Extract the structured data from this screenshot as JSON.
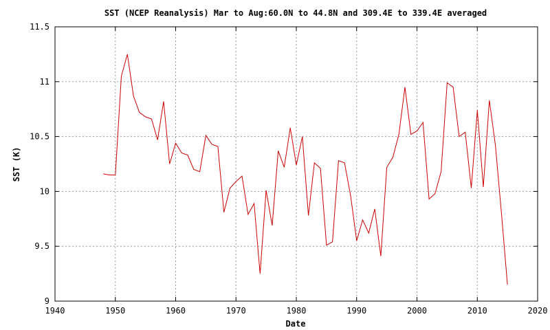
{
  "chart_data": {
    "type": "line",
    "title": "SST (NCEP Reanalysis) Mar to Aug:60.0N to 44.8N and 309.4E to 339.4E averaged",
    "xlabel": "Date",
    "ylabel": "SST (K)",
    "xlim": [
      1940,
      2020
    ],
    "ylim": [
      9,
      11.5
    ],
    "xticks": [
      "1940",
      "1950",
      "1960",
      "1970",
      "1980",
      "1990",
      "2000",
      "2010",
      "2020"
    ],
    "yticks": [
      "9",
      "9.5",
      "10",
      "10.5",
      "11",
      "11.5"
    ],
    "grid": true,
    "line_color": "#cc0000",
    "series": [
      {
        "x": [
          1948,
          1949,
          1950,
          1951,
          1952,
          1953,
          1954,
          1955,
          1956,
          1957,
          1958,
          1959,
          1960,
          1961,
          1962,
          1963,
          1964,
          1965,
          1966,
          1967,
          1968,
          1969,
          1970,
          1971,
          1972,
          1973,
          1974,
          1975,
          1976,
          1977,
          1978,
          1979,
          1980,
          1981,
          1982,
          1983,
          1984,
          1985,
          1986,
          1987,
          1988,
          1989,
          1990,
          1991,
          1992,
          1993,
          1994,
          1995,
          1996,
          1997,
          1998,
          1999,
          2000,
          2001,
          2002,
          2003,
          2004,
          2005,
          2006,
          2007,
          2008,
          2009,
          2010,
          2011,
          2012,
          2013,
          2014,
          2015
        ],
        "values": [
          10.16,
          10.15,
          10.15,
          11.05,
          11.25,
          10.87,
          10.72,
          10.68,
          10.66,
          10.47,
          10.82,
          10.25,
          10.44,
          10.35,
          10.33,
          10.2,
          10.18,
          10.51,
          10.43,
          10.41,
          9.81,
          10.03,
          10.09,
          10.14,
          9.79,
          9.89,
          9.25,
          10.01,
          9.69,
          10.37,
          10.22,
          10.58,
          10.24,
          10.5,
          9.78,
          10.26,
          10.21,
          9.51,
          9.54,
          10.28,
          10.26,
          9.96,
          9.55,
          9.74,
          9.62,
          9.84,
          9.41,
          10.22,
          10.31,
          10.52,
          10.95,
          10.52,
          10.55,
          10.63,
          9.93,
          9.98,
          10.18,
          10.99,
          10.95,
          10.5,
          10.54,
          10.03,
          10.74,
          10.04,
          10.83,
          10.42,
          9.8,
          9.15
        ]
      }
    ]
  }
}
